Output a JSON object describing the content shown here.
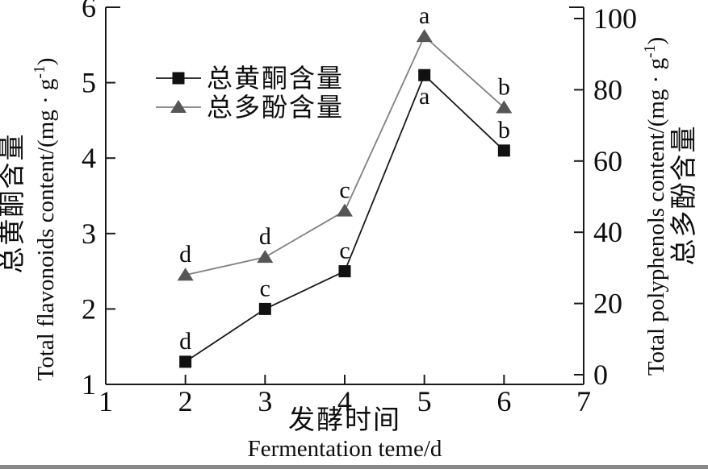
{
  "chart_data": {
    "type": "line",
    "x": [
      2,
      3,
      4,
      5,
      6
    ],
    "x_axis": {
      "label_zh": "发酵时间",
      "label_en": "Fermentation teme/d",
      "min": 1,
      "max": 7,
      "ticks": [
        1,
        2,
        3,
        4,
        5,
        6,
        7
      ]
    },
    "y_axis_left": {
      "label_zh": "总黄酮含量",
      "label_en": "Total flavonoids content/(mg · g⁻¹)",
      "min": 1,
      "max": 6,
      "ticks": [
        1,
        2,
        3,
        4,
        5,
        6
      ]
    },
    "y_axis_right": {
      "label_zh": "总多酚含量",
      "label_en": "Total polyphenols content/(mg · g⁻¹)",
      "min": 0,
      "max": 100,
      "ticks": [
        0,
        20,
        40,
        60,
        80,
        100
      ]
    },
    "series": [
      {
        "name": "总黄酮含量",
        "axis": "left",
        "marker": "square",
        "marker_color": "#111111",
        "line_color": "#1a1a1a",
        "values": [
          1.3,
          2.0,
          2.5,
          5.1,
          4.1
        ],
        "point_labels": [
          "d",
          "c",
          "c",
          "a",
          "b"
        ],
        "label_side": [
          "above",
          "above",
          "above",
          "below",
          "above"
        ]
      },
      {
        "name": "总多酚含量",
        "axis": "right",
        "marker": "triangle",
        "marker_color": "#565656",
        "line_color": "#808080",
        "values": [
          28,
          33,
          46,
          95,
          75
        ],
        "point_labels": [
          "d",
          "d",
          "c",
          "a",
          "b"
        ],
        "label_side": [
          "above",
          "above",
          "above",
          "above",
          "above"
        ]
      }
    ],
    "legend": {
      "items": [
        {
          "label": "总黄酮含量",
          "marker": "square"
        },
        {
          "label": "总多酚含量",
          "marker": "triangle"
        }
      ]
    },
    "colors": {
      "axis": "#1a1a1a",
      "text": "#0d0d0d",
      "background": "#ffffff"
    }
  }
}
